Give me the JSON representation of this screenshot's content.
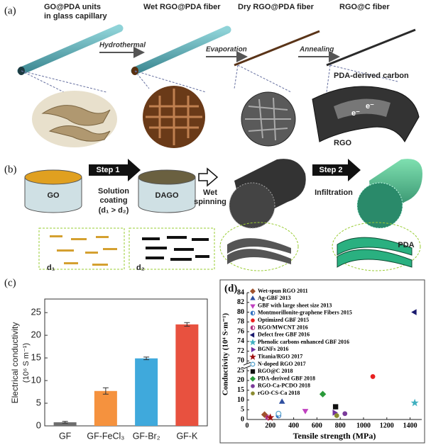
{
  "panel_a": {
    "label": "(a)",
    "stage_1": [
      "GO@PDA units",
      "in glass capillary"
    ],
    "stage_2": "Wet RGO@PDA fiber",
    "stage_3": "Dry RGO@PDA fiber",
    "stage_4": "RGO@C fiber",
    "steps": [
      "Hydrothermal",
      "Evaporation",
      "Annealing"
    ],
    "callouts": {
      "carbon": "PDA-derived carbon",
      "electron": "e⁻",
      "rgo": "RGO"
    }
  },
  "panel_b": {
    "label": "(b)",
    "vessels": [
      "GO",
      "DAGO"
    ],
    "step_1": "Step 1",
    "step_1_process": [
      "Solution",
      "coating",
      "(d₁ > d₂)"
    ],
    "spinning": [
      "Wet",
      "spinning"
    ],
    "step_2": "Step 2",
    "step_2_process": "Infiltration",
    "coating": "PDA",
    "spacings": [
      "d₁",
      "d₂"
    ]
  },
  "chart_data": [
    {
      "type": "bar",
      "label": "(c)",
      "ylabel": [
        "Electrical conductivity",
        "(10⁶ S m⁻¹)"
      ],
      "categories": [
        "GF",
        "GF-FeCl₃",
        "GF-Br₂",
        "GF-K"
      ],
      "values": [
        0.8,
        7.7,
        14.9,
        22.4
      ],
      "errors": [
        0.2,
        0.7,
        0.3,
        0.4
      ],
      "colors": [
        "#6e6e6e",
        "#f5923e",
        "#3fa9dc",
        "#e8513f"
      ],
      "ylim": [
        0,
        28
      ],
      "yticks": [
        0,
        5,
        10,
        15,
        20,
        25
      ]
    },
    {
      "type": "scatter",
      "label": "(d)",
      "xlabel": "Tensile strength (MPa)",
      "ylabel": "Conductivity (10⁴ S·m⁻¹)",
      "xlim": [
        0,
        1500
      ],
      "xticks": [
        0,
        200,
        400,
        600,
        800,
        1000,
        1200,
        1400
      ],
      "ylim": [
        0,
        84
      ],
      "ybreak": [
        25,
        70
      ],
      "yticks": [
        0,
        5,
        10,
        15,
        20,
        25,
        70,
        72,
        74,
        76,
        78,
        80,
        82,
        84
      ],
      "series": [
        {
          "name": "Wet-spun RGO 2011",
          "color": "#a0522d",
          "marker": "diamond",
          "x": [
            150
          ],
          "values": [
            2.5
          ]
        },
        {
          "name": "Ag-GBF 2013",
          "color": "#2f4fa0",
          "marker": "triangle-up",
          "x": [
            300
          ],
          "values": [
            9
          ]
        },
        {
          "name": "GBF with large sheet size 2013",
          "color": "#c040c0",
          "marker": "triangle-down",
          "x": [
            500
          ],
          "values": [
            4.5
          ]
        },
        {
          "name": "Montmorillonite-graphene Fibers 2015",
          "color": "#3070c0",
          "marker": "half-circle",
          "x": [
            270
          ],
          "values": [
            2
          ]
        },
        {
          "name": "Optimized GBF 2015",
          "color": "#e82020",
          "marker": "circle",
          "x": [
            1080
          ],
          "values": [
            22
          ]
        },
        {
          "name": "RGO/MWCNT 2016",
          "color": "#b03080",
          "marker": "half-circle",
          "x": [
            180
          ],
          "values": [
            1
          ]
        },
        {
          "name": "Defect free GBF 2016",
          "color": "#1a1a6e",
          "marker": "triangle-left",
          "x": [
            1440
          ],
          "values": [
            80
          ]
        },
        {
          "name": "Phenolic carbons enhanced GBF 2016",
          "color": "#40b0c0",
          "marker": "star",
          "x": [
            1440
          ],
          "values": [
            8.5
          ]
        },
        {
          "name": "BGNFs 2016",
          "color": "#7030a0",
          "marker": "triangle-right",
          "x": [
            750
          ],
          "values": [
            3.5
          ]
        },
        {
          "name": "Titania/RGO 2017",
          "color": "#a01010",
          "marker": "star",
          "x": [
            200
          ],
          "values": [
            1
          ]
        },
        {
          "name": "N-doped RGO 2017",
          "color": "#60a8d0",
          "marker": "open-circle",
          "x": [
            270
          ],
          "values": [
            3
          ]
        },
        {
          "name": "RGO@C 2018",
          "color": "#111111",
          "marker": "square",
          "x": [
            760
          ],
          "values": [
            6.5
          ]
        },
        {
          "name": "PDA-derived GBF 2018",
          "color": "#2a9a3a",
          "marker": "diamond",
          "x": [
            650
          ],
          "values": [
            13
          ]
        },
        {
          "name": "RGO-Ca-PCDO 2018",
          "color": "#7a3a9a",
          "marker": "circle",
          "x": [
            840
          ],
          "values": [
            3
          ]
        },
        {
          "name": "rGO-CS-Ca 2018",
          "color": "#8a8a30",
          "marker": "circle",
          "x": [
            770
          ],
          "values": [
            2
          ]
        }
      ]
    }
  ]
}
